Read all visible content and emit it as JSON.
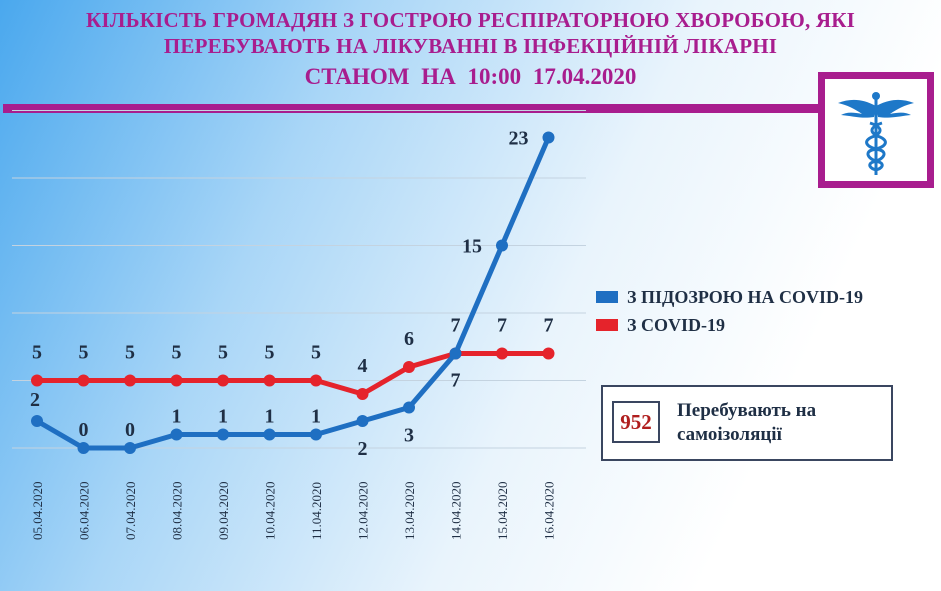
{
  "header": {
    "title_line1": "КІЛЬКІСТЬ ГРОМАДЯН  З ГОСТРОЮ РЕСПІРАТОРНОЮ ХВОРОБОЮ, ЯКІ",
    "title_line2": "ПЕРЕБУВАЮТЬ НА ЛІКУВАННІ В ІНФЕКЦІЙНІЙ  ЛІКАРНІ",
    "title_line3": "СТАНОМ  НА 10:00     17.04.2020"
  },
  "logo": {
    "icon": "caduceus-icon"
  },
  "colors": {
    "accent": "#a81d8e",
    "series_suspected": "#1f6fc2",
    "series_covid": "#e5232b",
    "text_dark": "#1f2f45",
    "count_red": "#b01e1e"
  },
  "chart_data": {
    "type": "line",
    "title": "",
    "xlabel": "",
    "ylabel": "",
    "ylim": [
      0,
      25
    ],
    "grid": true,
    "legend_position": "right",
    "categories": [
      "05.04.2020",
      "06.04.2020",
      "07.04.2020",
      "08.04.2020",
      "09.04.2020",
      "10.04.2020",
      "11.04.2020",
      "12.04.2020",
      "13.04.2020",
      "14.04.2020",
      "15.04.2020",
      "16.04.2020"
    ],
    "series": [
      {
        "name": "З ПІДОЗРОЮ НА COVID-19",
        "color": "#1f6fc2",
        "values": [
          2,
          0,
          0,
          1,
          1,
          1,
          1,
          2,
          3,
          7,
          15,
          23
        ]
      },
      {
        "name": "З COVID-19",
        "color": "#e5232b",
        "values": [
          5,
          5,
          5,
          5,
          5,
          5,
          5,
          4,
          6,
          7,
          7,
          7
        ]
      }
    ]
  },
  "self_isolation": {
    "count": "952",
    "label": "Перебувають на самоізоляції"
  }
}
